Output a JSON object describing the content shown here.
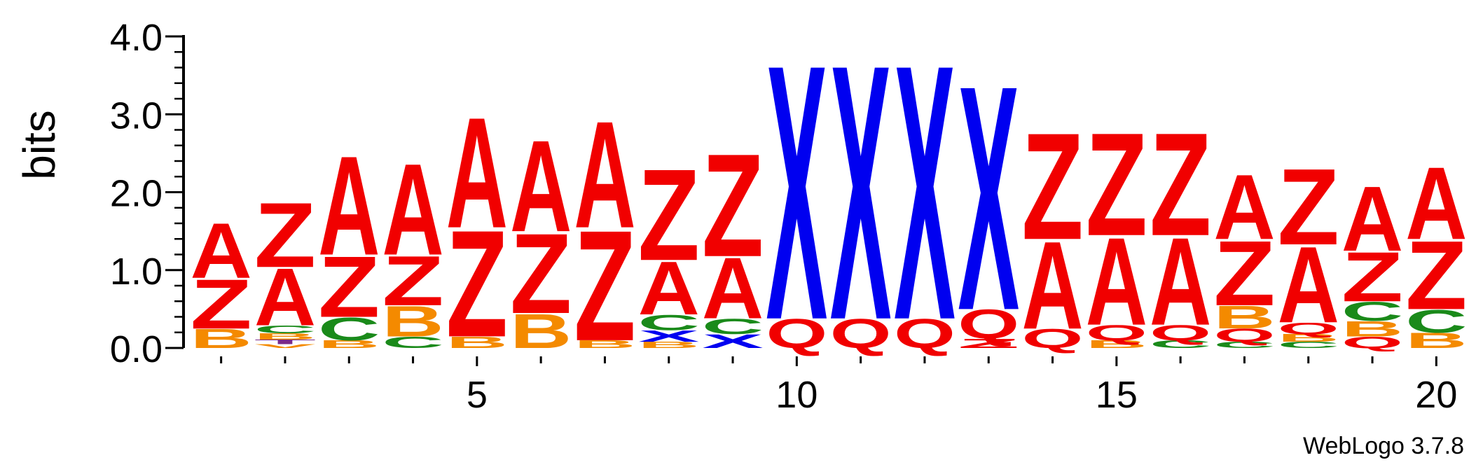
{
  "chart_data": {
    "type": "sequence-logo",
    "ylabel": "bits",
    "ylim": [
      0,
      4.0
    ],
    "y_ticks": [
      "0.0",
      "1.0",
      "2.0",
      "3.0",
      "4.0"
    ],
    "x_ticks": [
      "5",
      "10",
      "15",
      "20"
    ],
    "footer": "WebLogo 3.7.8",
    "colors": {
      "A": "#f10000",
      "Z": "#f10000",
      "Q": "#f10000",
      "B": "#f48a00",
      "C": "#1a8a1a",
      "X": "#0000f0",
      "T": "#7a2a8a",
      "V": "#f48a00"
    },
    "positions": [
      {
        "pos": 1,
        "stack": [
          {
            "letter": "B",
            "bits": 0.25
          },
          {
            "letter": "Z",
            "bits": 0.65
          },
          {
            "letter": "A",
            "bits": 0.72
          }
        ]
      },
      {
        "pos": 2,
        "stack": [
          {
            "letter": "V",
            "bits": 0.05
          },
          {
            "letter": "T",
            "bits": 0.06
          },
          {
            "letter": "B",
            "bits": 0.08
          },
          {
            "letter": "C",
            "bits": 0.1
          },
          {
            "letter": "A",
            "bits": 0.75
          },
          {
            "letter": "Z",
            "bits": 0.85
          }
        ]
      },
      {
        "pos": 3,
        "stack": [
          {
            "letter": "B",
            "bits": 0.1
          },
          {
            "letter": "C",
            "bits": 0.3
          },
          {
            "letter": "Z",
            "bits": 0.8
          },
          {
            "letter": "A",
            "bits": 1.3
          }
        ]
      },
      {
        "pos": 4,
        "stack": [
          {
            "letter": "C",
            "bits": 0.15
          },
          {
            "letter": "B",
            "bits": 0.4
          },
          {
            "letter": "Z",
            "bits": 0.65
          },
          {
            "letter": "A",
            "bits": 1.2
          }
        ]
      },
      {
        "pos": 5,
        "stack": [
          {
            "letter": "B",
            "bits": 0.15
          },
          {
            "letter": "Z",
            "bits": 1.4
          },
          {
            "letter": "A",
            "bits": 1.45
          }
        ]
      },
      {
        "pos": 6,
        "stack": [
          {
            "letter": "B",
            "bits": 0.45
          },
          {
            "letter": "Z",
            "bits": 1.05
          },
          {
            "letter": "A",
            "bits": 1.2
          }
        ]
      },
      {
        "pos": 7,
        "stack": [
          {
            "letter": "B",
            "bits": 0.1
          },
          {
            "letter": "Z",
            "bits": 1.45
          },
          {
            "letter": "A",
            "bits": 1.4
          }
        ]
      },
      {
        "pos": 8,
        "stack": [
          {
            "letter": "B",
            "bits": 0.08
          },
          {
            "letter": "X",
            "bits": 0.15
          },
          {
            "letter": "C",
            "bits": 0.2
          },
          {
            "letter": "A",
            "bits": 0.7
          },
          {
            "letter": "Z",
            "bits": 1.2
          }
        ]
      },
      {
        "pos": 9,
        "stack": [
          {
            "letter": "X",
            "bits": 0.18
          },
          {
            "letter": "C",
            "bits": 0.2
          },
          {
            "letter": "A",
            "bits": 0.8
          },
          {
            "letter": "Z",
            "bits": 1.35
          }
        ]
      },
      {
        "pos": 10,
        "stack": [
          {
            "letter": "Q",
            "bits": 0.38
          },
          {
            "letter": "X",
            "bits": 3.35
          }
        ]
      },
      {
        "pos": 11,
        "stack": [
          {
            "letter": "Q",
            "bits": 0.38
          },
          {
            "letter": "X",
            "bits": 3.35
          }
        ]
      },
      {
        "pos": 12,
        "stack": [
          {
            "letter": "Q",
            "bits": 0.38
          },
          {
            "letter": "X",
            "bits": 3.35
          }
        ]
      },
      {
        "pos": 13,
        "stack": [
          {
            "letter": "Z",
            "bits": 0.12
          },
          {
            "letter": "Q",
            "bits": 0.38
          },
          {
            "letter": "X",
            "bits": 2.95
          }
        ]
      },
      {
        "pos": 14,
        "stack": [
          {
            "letter": "Q",
            "bits": 0.25
          },
          {
            "letter": "A",
            "bits": 1.15
          },
          {
            "letter": "Z",
            "bits": 1.4
          }
        ]
      },
      {
        "pos": 15,
        "stack": [
          {
            "letter": "B",
            "bits": 0.1
          },
          {
            "letter": "Q",
            "bits": 0.2
          },
          {
            "letter": "A",
            "bits": 1.15
          },
          {
            "letter": "Z",
            "bits": 1.35
          }
        ]
      },
      {
        "pos": 16,
        "stack": [
          {
            "letter": "C",
            "bits": 0.1
          },
          {
            "letter": "Q",
            "bits": 0.2
          },
          {
            "letter": "A",
            "bits": 1.15
          },
          {
            "letter": "Z",
            "bits": 1.35
          }
        ]
      },
      {
        "pos": 17,
        "stack": [
          {
            "letter": "C",
            "bits": 0.08
          },
          {
            "letter": "Q",
            "bits": 0.17
          },
          {
            "letter": "B",
            "bits": 0.3
          },
          {
            "letter": "Z",
            "bits": 0.85
          },
          {
            "letter": "A",
            "bits": 0.85
          }
        ]
      },
      {
        "pos": 18,
        "stack": [
          {
            "letter": "C",
            "bits": 0.08
          },
          {
            "letter": "B",
            "bits": 0.1
          },
          {
            "letter": "Q",
            "bits": 0.15
          },
          {
            "letter": "A",
            "bits": 1.0
          },
          {
            "letter": "Z",
            "bits": 1.0
          }
        ]
      },
      {
        "pos": 19,
        "stack": [
          {
            "letter": "Q",
            "bits": 0.15
          },
          {
            "letter": "B",
            "bits": 0.2
          },
          {
            "letter": "C",
            "bits": 0.25
          },
          {
            "letter": "Z",
            "bits": 0.65
          },
          {
            "letter": "A",
            "bits": 0.85
          }
        ]
      },
      {
        "pos": 20,
        "stack": [
          {
            "letter": "B",
            "bits": 0.2
          },
          {
            "letter": "C",
            "bits": 0.3
          },
          {
            "letter": "Z",
            "bits": 0.9
          },
          {
            "letter": "A",
            "bits": 0.95
          }
        ]
      }
    ]
  }
}
